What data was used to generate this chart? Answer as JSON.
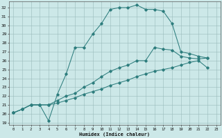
{
  "bg_color": "#cce8e8",
  "grid_color": "#99bbbb",
  "line_color": "#2d7d7d",
  "xlabel": "Humidex (Indice chaleur)",
  "xlim": [
    -0.5,
    23.5
  ],
  "ylim": [
    18.7,
    32.7
  ],
  "xticks": [
    0,
    1,
    2,
    3,
    4,
    5,
    6,
    7,
    8,
    9,
    10,
    11,
    12,
    13,
    14,
    15,
    16,
    17,
    18,
    19,
    20,
    21,
    22,
    23
  ],
  "yticks": [
    19,
    20,
    21,
    22,
    23,
    24,
    25,
    26,
    27,
    28,
    29,
    30,
    31,
    32
  ],
  "curve1_x": [
    0,
    1,
    2,
    3,
    4,
    5,
    6,
    7,
    8,
    9,
    10,
    11,
    12,
    13,
    14,
    15,
    16,
    17,
    18,
    19,
    20,
    21,
    22
  ],
  "curve1_y": [
    20.1,
    20.5,
    21.0,
    21.0,
    19.2,
    22.2,
    24.5,
    27.5,
    27.5,
    29.0,
    30.2,
    31.8,
    32.0,
    32.0,
    32.3,
    31.8,
    31.8,
    31.6,
    30.2,
    27.0,
    26.8,
    26.5,
    26.3
  ],
  "curve2_x": [
    0,
    1,
    2,
    3,
    4,
    5,
    6,
    7,
    8,
    9,
    10,
    11,
    12,
    13,
    14,
    15,
    16,
    17,
    18,
    19,
    20,
    21,
    22
  ],
  "curve2_y": [
    20.1,
    20.5,
    21.0,
    21.0,
    21.0,
    21.5,
    22.0,
    22.3,
    23.0,
    23.5,
    24.2,
    24.8,
    25.2,
    25.5,
    26.0,
    26.0,
    27.5,
    27.3,
    27.2,
    26.5,
    26.3,
    26.2,
    26.3
  ],
  "curve3_x": [
    0,
    1,
    2,
    3,
    4,
    5,
    6,
    7,
    8,
    9,
    10,
    11,
    12,
    13,
    14,
    15,
    16,
    17,
    18,
    19,
    20,
    21,
    22
  ],
  "curve3_y": [
    20.1,
    20.5,
    21.0,
    21.0,
    21.0,
    21.2,
    21.5,
    21.8,
    22.2,
    22.5,
    22.8,
    23.2,
    23.5,
    23.8,
    24.2,
    24.5,
    24.8,
    25.0,
    25.2,
    25.5,
    25.8,
    26.0,
    25.2
  ]
}
